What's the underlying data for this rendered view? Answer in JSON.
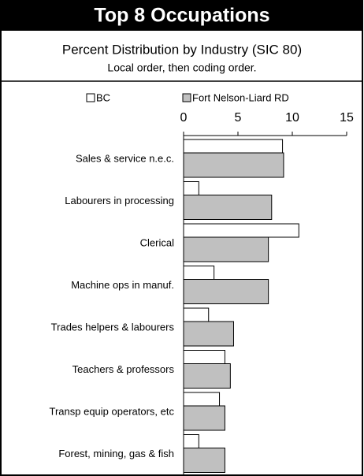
{
  "chart_data": {
    "type": "bar",
    "orientation": "horizontal",
    "title": "Top 8 Occupations",
    "subtitle": "Percent Distribution by Industry (SIC 80)",
    "note": "Local order, then coding order.",
    "categories": [
      "Sales & service  n.e.c.",
      "Labourers in processing",
      "Clerical",
      "Machine ops in manuf.",
      "Trades helpers & labourers",
      "Teachers & professors",
      "Transp equip operators, etc",
      "Forest, mining, gas & fish"
    ],
    "series": [
      {
        "name": "BC",
        "color": "#ffffff",
        "values": [
          9.1,
          1.4,
          10.6,
          2.8,
          2.3,
          3.8,
          3.3,
          1.4
        ]
      },
      {
        "name": "Fort Nelson-Liard RD",
        "color": "#c0c0c0",
        "values": [
          9.2,
          8.1,
          7.8,
          7.8,
          4.6,
          4.3,
          3.8,
          3.8
        ]
      }
    ],
    "xlim": [
      0,
      15
    ],
    "xticks": [
      0,
      5,
      10,
      15
    ]
  }
}
